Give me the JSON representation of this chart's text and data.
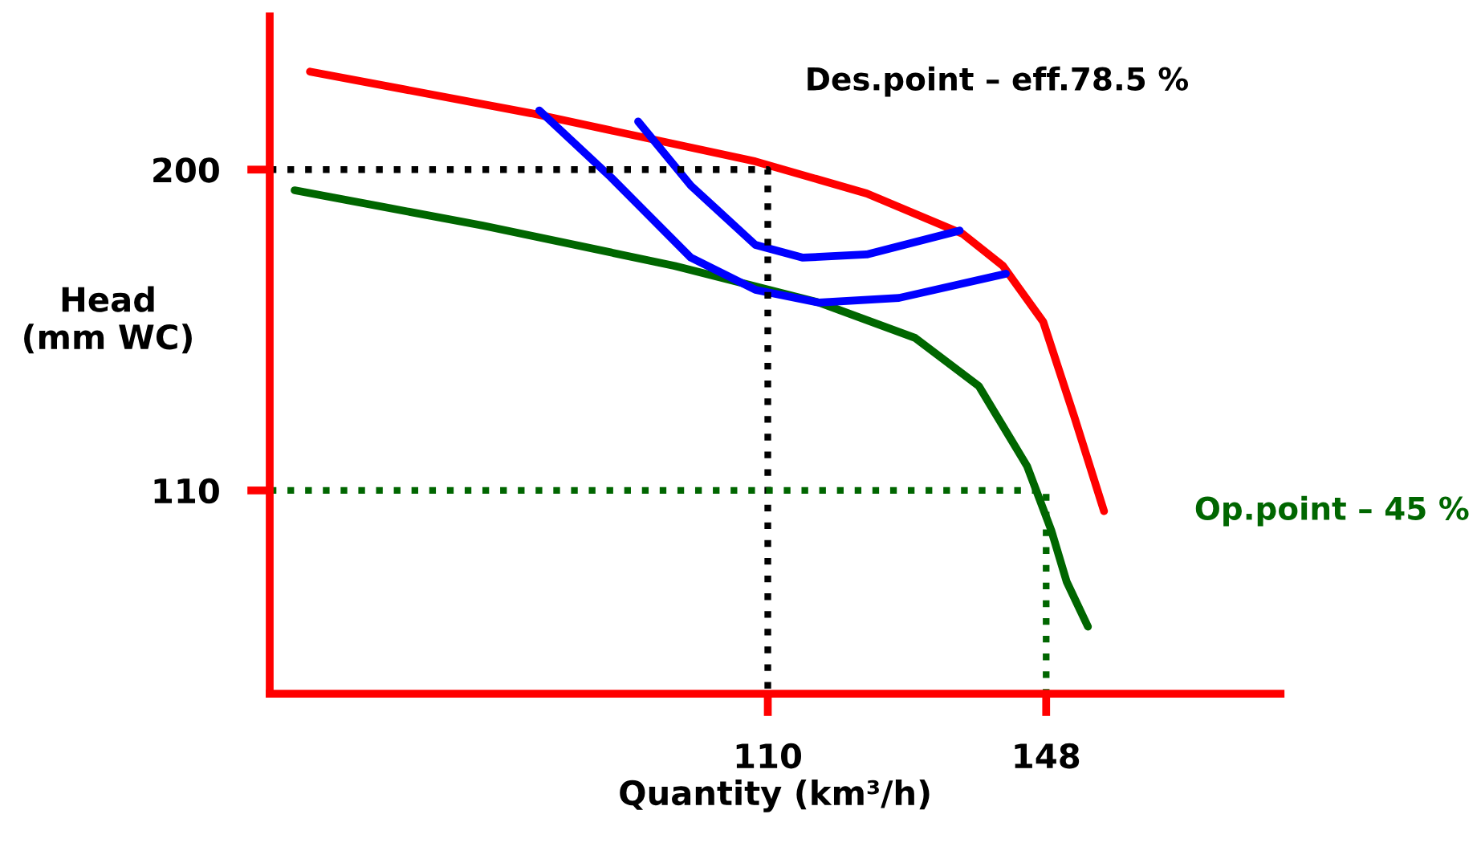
{
  "chart_data": {
    "type": "line",
    "xlabel": "Quantity (km³/h)",
    "ylabel": "Head\n(mm WC)",
    "xlim": [
      42,
      180
    ],
    "ylim": [
      53,
      243
    ],
    "xticks": [
      110,
      148
    ],
    "yticks": [
      200,
      110
    ],
    "grid": false,
    "legend": false,
    "marker": "none",
    "annotations": [
      "Des.point – eff.78.5 %",
      "Op.point – 45 %"
    ],
    "series": [
      {
        "color": "#ff0000",
        "line_style": "solid",
        "x": [
          47.5,
          77.7,
          108.3,
          123.5,
          136.6,
          142.1,
          147.6,
          151.9,
          155.9
        ],
        "values": [
          227.5,
          215.8,
          202.3,
          193.3,
          182.0,
          173.0,
          157.3,
          130.3,
          104.2
        ]
      },
      {
        "color": "#006600",
        "line_style": "solid",
        "x": [
          45.4,
          71.1,
          97.3,
          117.0,
          130.1,
          138.8,
          145.4,
          148.7,
          150.8,
          153.7
        ],
        "values": [
          194.2,
          184.3,
          173.0,
          162.7,
          152.8,
          139.3,
          116.8,
          98.8,
          84.4,
          71.8
        ]
      },
      {
        "color": "#0000ff",
        "line_style": "solid",
        "x": [
          92.3,
          99.5,
          108.3,
          114.8,
          123.5,
          136.2
        ],
        "values": [
          213.5,
          195.5,
          178.9,
          175.3,
          176.2,
          182.9
        ]
      },
      {
        "color": "#0000ff",
        "line_style": "solid",
        "x": [
          78.8,
          88.6,
          99.5,
          108.3,
          117.0,
          127.9,
          142.5
        ],
        "values": [
          216.6,
          197.8,
          175.3,
          166.3,
          162.7,
          164.0,
          170.8
        ]
      },
      {
        "color": "#000000",
        "line_style": "dotted",
        "x": [
          42,
          110,
          110
        ],
        "values": [
          200,
          200,
          53
        ]
      },
      {
        "color": "#006600",
        "line_style": "dotted",
        "x": [
          42,
          148,
          148
        ],
        "values": [
          110,
          110,
          53
        ]
      }
    ]
  }
}
